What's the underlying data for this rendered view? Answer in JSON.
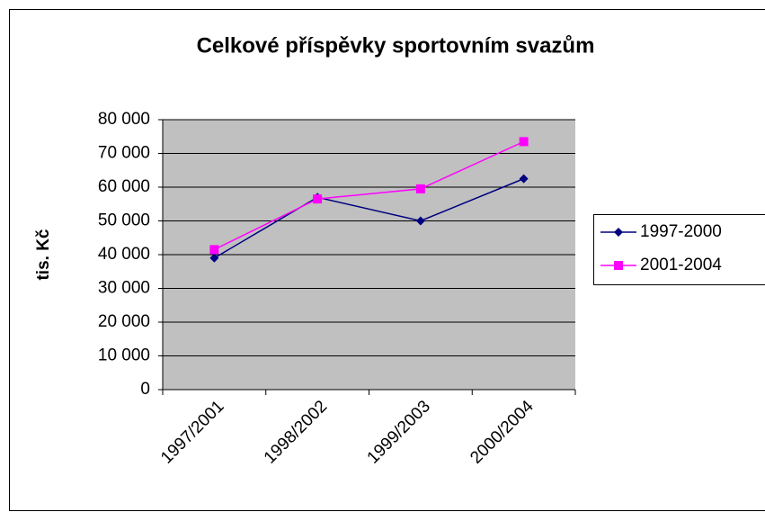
{
  "chart_data": {
    "type": "line",
    "title": "Celkové příspěvky sportovním svazům",
    "y_label": "tis. Kč",
    "categories": [
      "1997/2001",
      "1998/2002",
      "1999/2003",
      "2000/2004"
    ],
    "series": [
      {
        "name": "1997-2000",
        "color": "#000080",
        "marker": "diamond",
        "values": [
          39000,
          57000,
          50000,
          62500
        ]
      },
      {
        "name": "2001-2004",
        "color": "#ff00ff",
        "marker": "square",
        "values": [
          41500,
          56500,
          59500,
          73500
        ]
      }
    ],
    "ylim": [
      0,
      80000
    ],
    "yticks": [
      0,
      {
        "value": 10000,
        "label": "10 000"
      },
      {
        "value": 20000,
        "label": "20 000"
      },
      {
        "value": 30000,
        "label": "30 000"
      },
      {
        "value": 40000,
        "label": "40 000"
      },
      {
        "value": 50000,
        "label": "50 000"
      },
      {
        "value": 60000,
        "label": "60 000"
      },
      {
        "value": 70000,
        "label": "70 000"
      },
      {
        "value": 80000,
        "label": "80 000"
      }
    ],
    "grid": true,
    "plot_background": "#c0c0c0",
    "legend": "right"
  }
}
